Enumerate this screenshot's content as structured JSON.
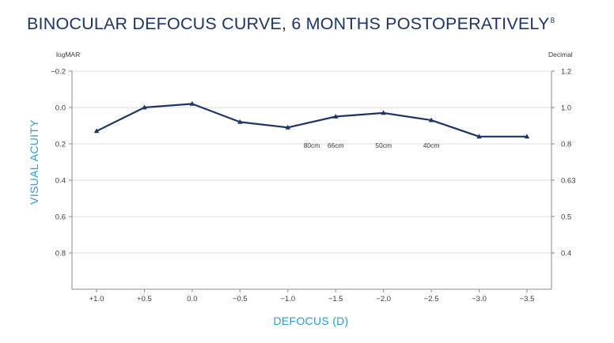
{
  "title": "BINOCULAR DEFOCUS CURVE, 6 MONTHS POSTOPERATIVELY",
  "title_superscript": "8",
  "chart_data": {
    "type": "line",
    "title": "BINOCULAR DEFOCUS CURVE, 6 MONTHS POSTOPERATIVELY",
    "xlabel": "DEFOCUS (D)",
    "ylabel": "VISUAL ACUITY",
    "y_left_unit": "logMAR",
    "y_right_unit": "Decimal",
    "x": [
      "+1.0",
      "+0.5",
      "0.0",
      "−0.5",
      "−1.0",
      "−1.5",
      "−2.0",
      "−2.5",
      "−3.0",
      "−3.5"
    ],
    "x_values": [
      1.0,
      0.5,
      0.0,
      -0.5,
      -1.0,
      -1.5,
      -2.0,
      -2.5,
      -3.0,
      -3.5
    ],
    "series": [
      {
        "values": [
          0.13,
          0.0,
          -0.02,
          0.08,
          0.11,
          0.05,
          0.03,
          0.07,
          0.16,
          0.16
        ]
      }
    ],
    "y_left_ticks": [
      "−0.2",
      "0.0",
      "0.2",
      "0.4",
      "0.6",
      "0.8"
    ],
    "y_left_tick_values": [
      -0.2,
      0.0,
      0.2,
      0.4,
      0.6,
      0.8
    ],
    "y_right_ticks": [
      "1.2",
      "1.0",
      "0.8",
      "0.63",
      "0.5",
      "0.4"
    ],
    "ylim": [
      1.0,
      -0.2
    ],
    "y_inverted": true,
    "annotations": [
      {
        "text": "80cm",
        "x": -1.25,
        "y": 0.3
      },
      {
        "text": "66cm",
        "x": -1.5,
        "y": 0.3
      },
      {
        "text": "50cm",
        "x": -2.0,
        "y": 0.3
      },
      {
        "text": "40cm",
        "x": -2.5,
        "y": 0.3
      }
    ],
    "grid": true,
    "colors": {
      "line": "#1d3466",
      "title": "#1d3466",
      "axis_title": "#2d9bd3",
      "grid": "#cfcfcf"
    }
  }
}
